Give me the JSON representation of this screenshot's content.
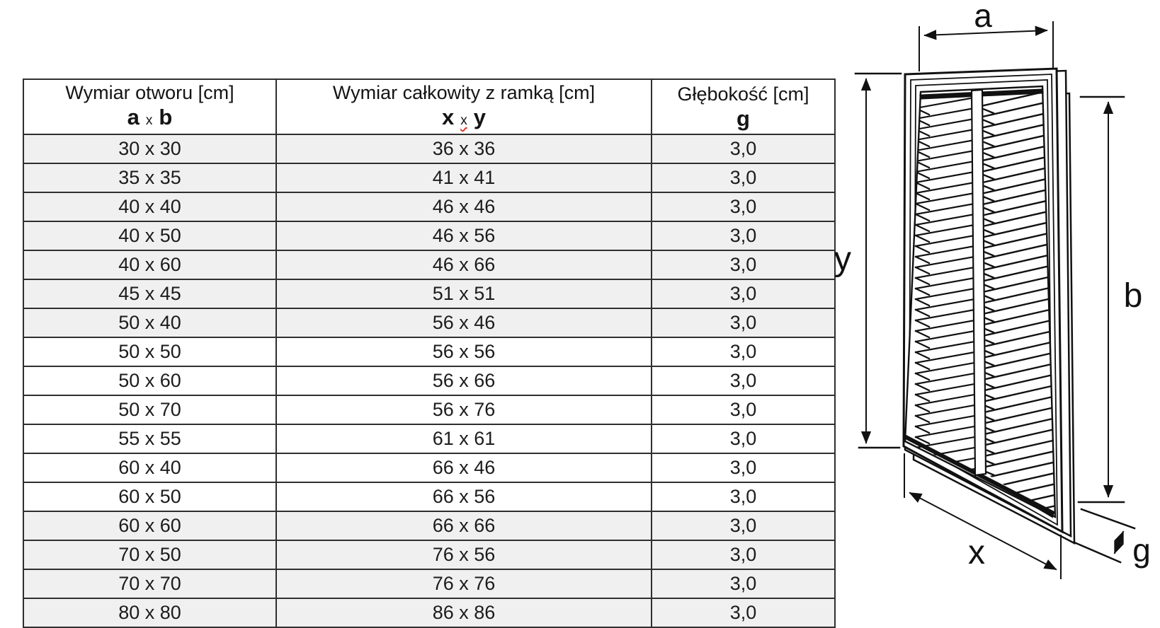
{
  "table": {
    "columns": [
      {
        "title": "Wymiar otworu [cm]",
        "sub_left": "a",
        "sub_sep": "x",
        "sub_right": "b"
      },
      {
        "title": "Wymiar całkowity z ramką [cm]",
        "sub_left": "x",
        "sub_sep": "x",
        "sub_right": "y"
      },
      {
        "title": "Głębokość [cm]",
        "sub": "g"
      }
    ],
    "rows": [
      {
        "opening": "30 x 30",
        "total": "36 x 36",
        "depth": "3,0",
        "shaded": true
      },
      {
        "opening": "35 x 35",
        "total": "41 x 41",
        "depth": "3,0",
        "shaded": true
      },
      {
        "opening": "40 x 40",
        "total": "46 x 46",
        "depth": "3,0",
        "shaded": true
      },
      {
        "opening": "40 x 50",
        "total": "46 x 56",
        "depth": "3,0",
        "shaded": true
      },
      {
        "opening": "40 x 60",
        "total": "46 x 66",
        "depth": "3,0",
        "shaded": true
      },
      {
        "opening": "45 x 45",
        "total": "51 x 51",
        "depth": "3,0",
        "shaded": true
      },
      {
        "opening": "50 x 40",
        "total": "56 x 46",
        "depth": "3,0",
        "shaded": true
      },
      {
        "opening": "50 x 50",
        "total": "56 x 56",
        "depth": "3,0",
        "shaded": false
      },
      {
        "opening": "50 x 60",
        "total": "56 x 66",
        "depth": "3,0",
        "shaded": false
      },
      {
        "opening": "50 x 70",
        "total": "56 x 76",
        "depth": "3,0",
        "shaded": false
      },
      {
        "opening": "55 x 55",
        "total": "61 x 61",
        "depth": "3,0",
        "shaded": false
      },
      {
        "opening": "60 x 40",
        "total": "66 x 46",
        "depth": "3,0",
        "shaded": false
      },
      {
        "opening": "60 x 50",
        "total": "66 x 56",
        "depth": "3,0",
        "shaded": false
      },
      {
        "opening": "60 x 60",
        "total": "66 x 66",
        "depth": "3,0",
        "shaded": true
      },
      {
        "opening": "70 x 50",
        "total": "76 x 56",
        "depth": "3,0",
        "shaded": true
      },
      {
        "opening": "70 x 70",
        "total": "76 x 76",
        "depth": "3,0",
        "shaded": true
      },
      {
        "opening": "80 x 80",
        "total": "86 x 86",
        "depth": "3,0",
        "shaded": true
      }
    ]
  },
  "diagram": {
    "labels": {
      "a": "a",
      "y": "y",
      "b": "b",
      "x": "x",
      "g": "g"
    }
  },
  "colors": {
    "row_shaded": "#f0f0f0",
    "table_border": "#2f2f2f",
    "drawing_line": "#111111",
    "misspell_underline": "#e0392f"
  }
}
